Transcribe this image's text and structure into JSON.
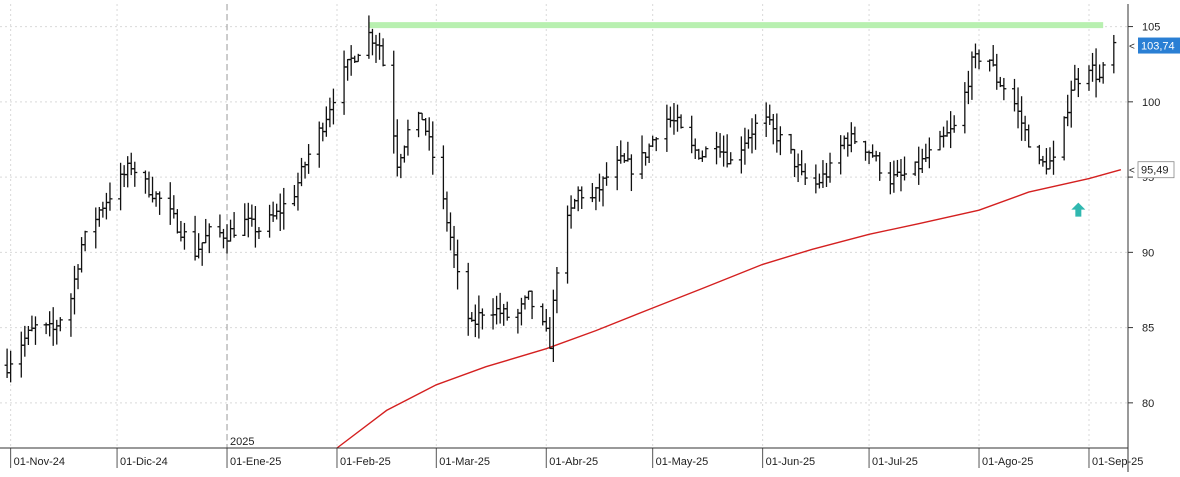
{
  "chart_data": {
    "type": "ohlc",
    "title": "",
    "xlabel": "",
    "ylabel": "",
    "ylim": [
      77,
      106.5
    ],
    "y_ticks": [
      "80",
      "85",
      "90",
      "95",
      "100",
      "105"
    ],
    "x_tick_labels": [
      "01-Nov-24",
      "01-Dic-24",
      "01-Ene-25",
      "01-Feb-25",
      "01-Mar-25",
      "01-Abr-25",
      "01-May-25",
      "01-Jun-25",
      "01-Jul-25",
      "01-Ago-25",
      "01-Sep-25"
    ],
    "year_marker": "2025",
    "last_price_label": "103,74",
    "moving_average_label": "95,49",
    "colors": {
      "price_bars": "#111111",
      "moving_average": "#d42020",
      "resistance": "#b8f0b0",
      "last_price_box": "#2a7fd4",
      "ma_box": "#ffffff",
      "arrow": "#30b8b0"
    },
    "resistance_level": 105.1,
    "arrow_annotation": {
      "date": "2025-08-29",
      "value": 93.3,
      "icon": "up-arrow-icon"
    },
    "close_series": {
      "points": [
        [
          "2024-10-31",
          82.5
        ],
        [
          "2024-11-04",
          84.0
        ],
        [
          "2024-11-08",
          85.0
        ],
        [
          "2024-11-13",
          84.8
        ],
        [
          "2024-11-18",
          87.0
        ],
        [
          "2024-11-21",
          90.5
        ],
        [
          "2024-11-26",
          92.8
        ],
        [
          "2024-12-01",
          94.5
        ],
        [
          "2024-12-05",
          95.8
        ],
        [
          "2024-12-09",
          94.5
        ],
        [
          "2024-12-13",
          93.5
        ],
        [
          "2024-12-16",
          92.5
        ],
        [
          "2024-12-19",
          91.5
        ],
        [
          "2024-12-23",
          90.0
        ],
        [
          "2024-12-27",
          91.3
        ],
        [
          "2025-01-01",
          91.2
        ],
        [
          "2025-01-06",
          92.0
        ],
        [
          "2025-01-10",
          91.5
        ],
        [
          "2025-01-15",
          92.5
        ],
        [
          "2025-01-20",
          94.0
        ],
        [
          "2025-01-24",
          96.5
        ],
        [
          "2025-01-28",
          98.5
        ],
        [
          "2025-02-01",
          101.0
        ],
        [
          "2025-02-05",
          102.8
        ],
        [
          "2025-02-10",
          104.5
        ],
        [
          "2025-02-13",
          103.8
        ],
        [
          "2025-02-16",
          100.0
        ],
        [
          "2025-02-18",
          96.0
        ],
        [
          "2025-02-21",
          98.0
        ],
        [
          "2025-02-25",
          99.0
        ],
        [
          "2025-03-01",
          95.5
        ],
        [
          "2025-03-05",
          91.0
        ],
        [
          "2025-03-08",
          87.0
        ],
        [
          "2025-03-11",
          85.0
        ],
        [
          "2025-03-15",
          86.5
        ],
        [
          "2025-03-19",
          86.0
        ],
        [
          "2025-03-23",
          85.5
        ],
        [
          "2025-03-27",
          87.0
        ],
        [
          "2025-03-30",
          85.5
        ],
        [
          "2025-04-02",
          84.0
        ],
        [
          "2025-04-04",
          89.0
        ],
        [
          "2025-04-07",
          92.0
        ],
        [
          "2025-04-10",
          94.0
        ],
        [
          "2025-04-14",
          93.5
        ],
        [
          "2025-04-18",
          95.0
        ],
        [
          "2025-04-22",
          96.0
        ],
        [
          "2025-04-26",
          95.5
        ],
        [
          "2025-04-30",
          97.0
        ],
        [
          "2025-05-04",
          99.0
        ],
        [
          "2025-05-08",
          98.5
        ],
        [
          "2025-05-11",
          97.0
        ],
        [
          "2025-05-15",
          96.5
        ],
        [
          "2025-05-19",
          97.5
        ],
        [
          "2025-05-23",
          96.0
        ],
        [
          "2025-05-27",
          97.5
        ],
        [
          "2025-06-01",
          99.0
        ],
        [
          "2025-06-04",
          98.0
        ],
        [
          "2025-06-08",
          97.0
        ],
        [
          "2025-06-12",
          95.0
        ],
        [
          "2025-06-16",
          94.5
        ],
        [
          "2025-06-20",
          95.5
        ],
        [
          "2025-06-24",
          97.5
        ],
        [
          "2025-06-28",
          97.5
        ],
        [
          "2025-07-02",
          96.5
        ],
        [
          "2025-07-06",
          94.8
        ],
        [
          "2025-07-10",
          95.0
        ],
        [
          "2025-07-14",
          95.5
        ],
        [
          "2025-07-18",
          96.5
        ],
        [
          "2025-07-22",
          97.5
        ],
        [
          "2025-07-26",
          98.5
        ],
        [
          "2025-07-30",
          102.5
        ],
        [
          "2025-08-03",
          103.5
        ],
        [
          "2025-08-06",
          101.5
        ],
        [
          "2025-08-10",
          100.5
        ],
        [
          "2025-08-14",
          98.0
        ],
        [
          "2025-08-18",
          95.8
        ],
        [
          "2025-08-22",
          96.0
        ],
        [
          "2025-08-25",
          98.5
        ],
        [
          "2025-08-27",
          101.0
        ],
        [
          "2025-09-01",
          102.5
        ],
        [
          "2025-09-04",
          101.5
        ],
        [
          "2025-09-08",
          103.74
        ]
      ]
    },
    "moving_average_series": {
      "points": [
        [
          "2025-02-01",
          77.0
        ],
        [
          "2025-02-15",
          79.5
        ],
        [
          "2025-03-01",
          81.2
        ],
        [
          "2025-03-15",
          82.4
        ],
        [
          "2025-04-01",
          83.6
        ],
        [
          "2025-04-15",
          84.8
        ],
        [
          "2025-05-01",
          86.3
        ],
        [
          "2025-05-15",
          87.6
        ],
        [
          "2025-06-01",
          89.2
        ],
        [
          "2025-06-15",
          90.2
        ],
        [
          "2025-07-01",
          91.2
        ],
        [
          "2025-07-15",
          91.9
        ],
        [
          "2025-08-01",
          92.8
        ],
        [
          "2025-08-15",
          94.0
        ],
        [
          "2025-09-01",
          94.9
        ],
        [
          "2025-09-10",
          95.49
        ]
      ]
    }
  }
}
